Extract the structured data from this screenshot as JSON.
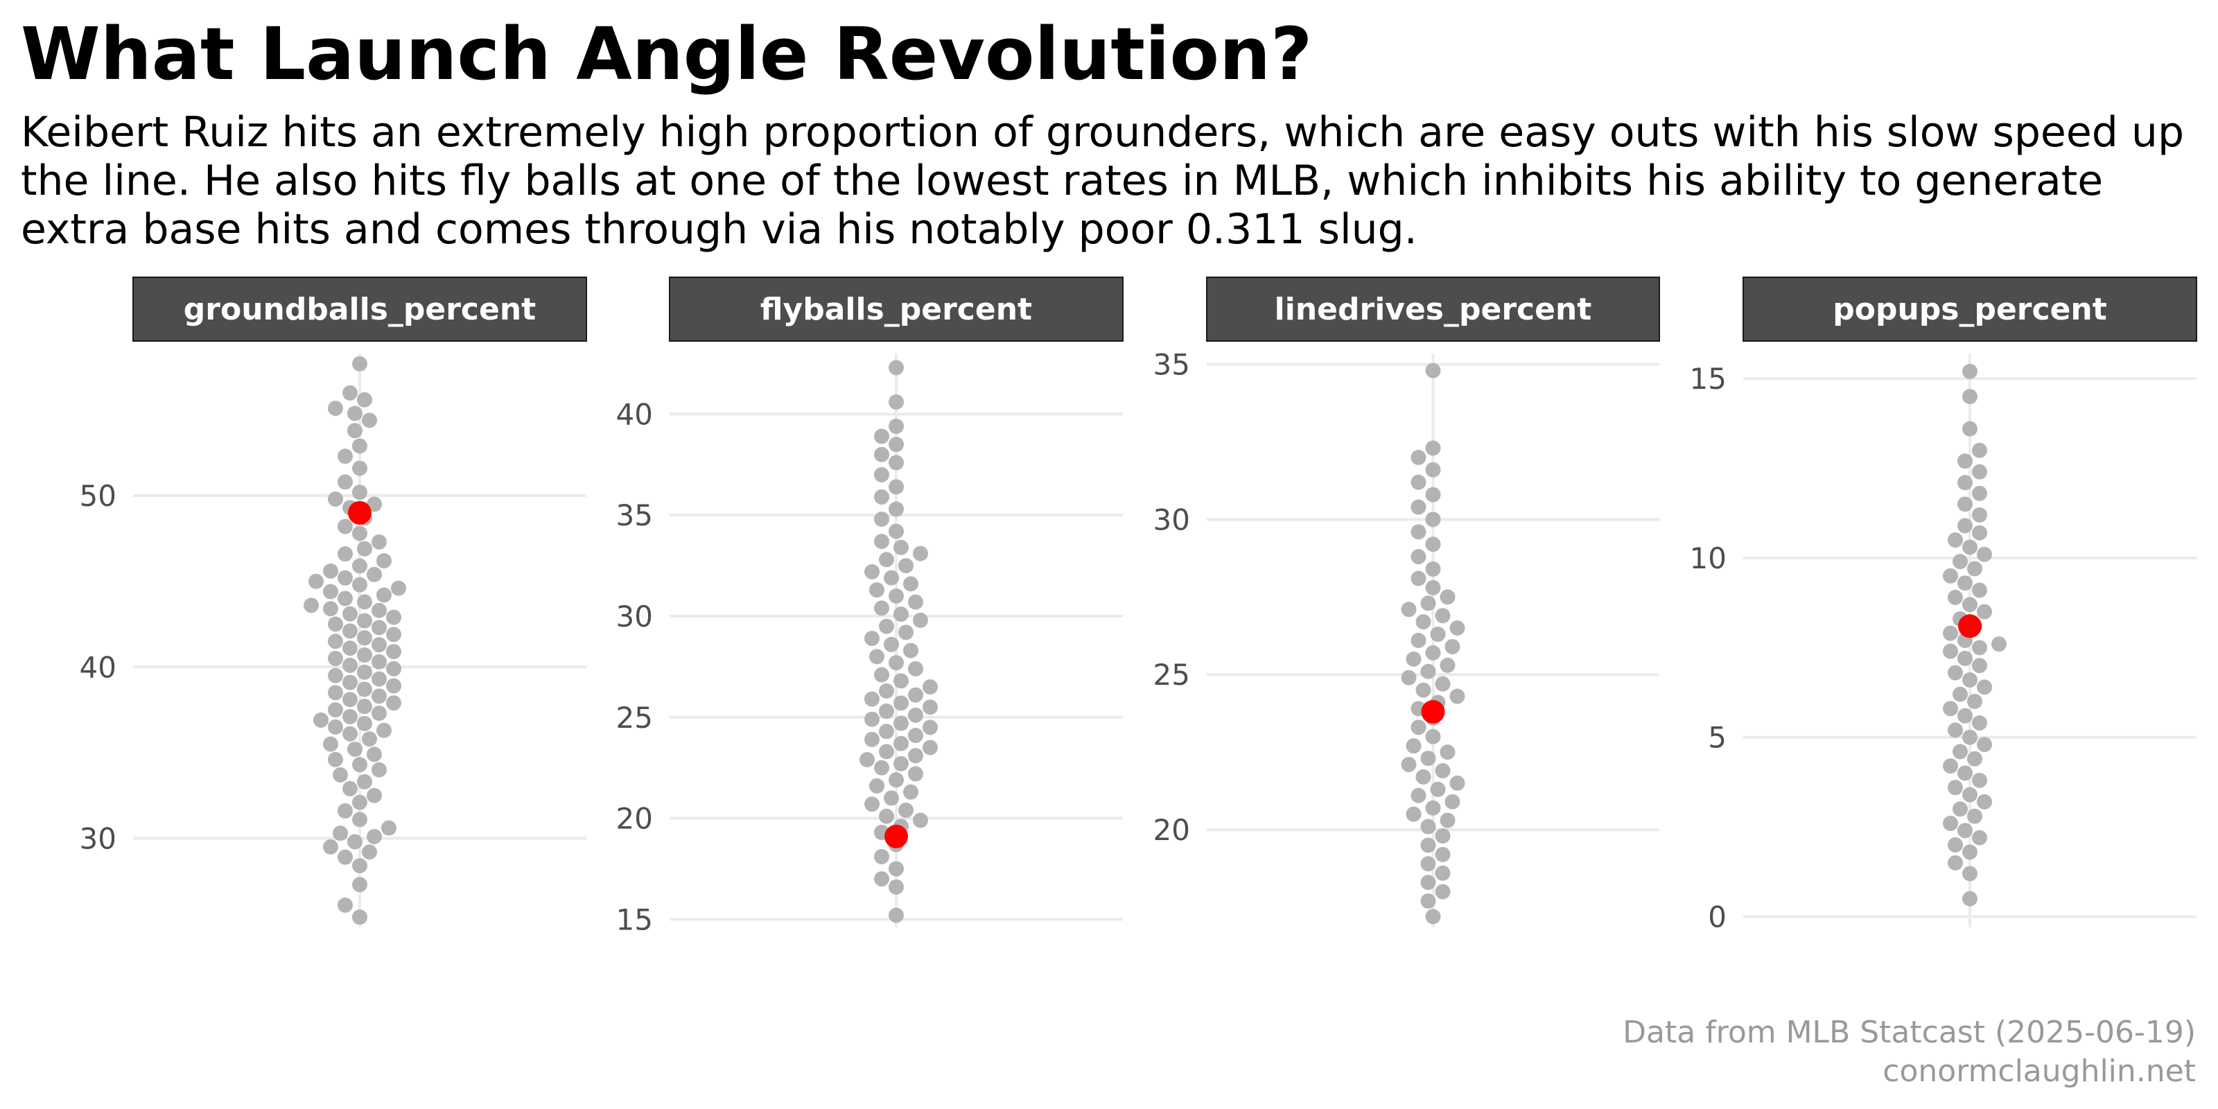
{
  "title": "What Launch Angle Revolution?",
  "subtitle": "Keibert Ruiz hits an extremely high proportion of grounders, which are easy outs with his slow speed up the line. He also hits fly balls at one of the lowest rates in MLB, which inhibits his ability to generate extra base hits and comes through via his notably poor 0.311 slug.",
  "caption": {
    "line1": "Data from MLB Statcast (2025-06-19)",
    "line2": "conormclaughlin.net"
  },
  "colors": {
    "league_points": "#b3b3b3",
    "highlight_point": "#ff0000",
    "strip_background": "#4d4d4d",
    "strip_text": "#ffffff",
    "grid": "#ebebeb",
    "tick_text": "#4d4d4d",
    "caption_text": "#999999"
  },
  "chart_data": {
    "type": "scatter",
    "style": "beeswarm, faceted with free y scales",
    "highlight_player": "Keibert Ruiz",
    "facets": [
      {
        "label": "groundballs_percent",
        "ylim": [
          24.8,
          58.3
        ],
        "ticks": [
          30,
          40,
          50
        ],
        "highlight": 49,
        "league_min": 25.4,
        "league_max": 57.7,
        "league_values": [
          57.7,
          56,
          55.6,
          55.1,
          54.8,
          54.4,
          53.8,
          52.9,
          52.3,
          51.6,
          50.8,
          50.2,
          49.8,
          49.5,
          49.3,
          48.7,
          48.2,
          47.8,
          47.3,
          46.9,
          46.6,
          46.2,
          45.9,
          45.6,
          45.4,
          45.2,
          45,
          44.8,
          44.6,
          44.4,
          44.2,
          44,
          43.8,
          43.6,
          43.4,
          43.3,
          43.1,
          42.9,
          42.7,
          42.5,
          42.3,
          42.1,
          41.9,
          41.7,
          41.5,
          41.3,
          41.1,
          40.9,
          40.7,
          40.5,
          40.3,
          40.1,
          39.9,
          39.7,
          39.5,
          39.3,
          39.1,
          38.9,
          38.7,
          38.5,
          38.3,
          38.1,
          37.9,
          37.7,
          37.5,
          37.3,
          37.1,
          36.9,
          36.7,
          36.5,
          36.3,
          36.1,
          35.8,
          35.5,
          35.2,
          34.9,
          34.6,
          34.3,
          34,
          33.7,
          33.3,
          32.9,
          32.5,
          32.1,
          31.6,
          31.1,
          30.6,
          30.3,
          30.1,
          29.8,
          29.5,
          29.2,
          28.9,
          28.4,
          27.3,
          26.1,
          25.4
        ]
      },
      {
        "label": "flyballs_percent",
        "ylim": [
          14.6,
          43.0
        ],
        "ticks": [
          15,
          20,
          25,
          30,
          35,
          40
        ],
        "highlight": 19.1,
        "league_min": 15.2,
        "league_max": 42.3,
        "league_values": [
          42.3,
          40.6,
          39.4,
          38.9,
          38.5,
          38,
          37.6,
          37,
          36.4,
          35.9,
          35.3,
          34.8,
          34.2,
          33.7,
          33.4,
          33.1,
          32.8,
          32.5,
          32.2,
          31.9,
          31.6,
          31.3,
          31,
          30.7,
          30.4,
          30.1,
          29.8,
          29.5,
          29.2,
          28.9,
          28.6,
          28.3,
          28,
          27.7,
          27.4,
          27.1,
          26.8,
          26.5,
          26.3,
          26.1,
          25.9,
          25.7,
          25.5,
          25.3,
          25.1,
          24.9,
          24.7,
          24.5,
          24.3,
          24.1,
          23.9,
          23.7,
          23.5,
          23.3,
          23.1,
          22.9,
          22.7,
          22.5,
          22.2,
          21.9,
          21.6,
          21.3,
          21,
          20.7,
          20.4,
          20.1,
          19.9,
          19.6,
          19.3,
          18.7,
          18.1,
          17.5,
          17,
          16.6,
          15.2
        ]
      },
      {
        "label": "linedrives_percent",
        "ylim": [
          16.85,
          35.35
        ],
        "ticks": [
          20,
          25,
          30,
          35
        ],
        "highlight": 23.8,
        "league_min": 17.2,
        "league_max": 34.8,
        "league_values": [
          34.8,
          32.3,
          32,
          31.6,
          31.2,
          30.8,
          30.4,
          30,
          29.6,
          29.2,
          28.8,
          28.4,
          28.1,
          27.8,
          27.5,
          27.3,
          27.1,
          26.9,
          26.7,
          26.5,
          26.3,
          26.1,
          25.9,
          25.7,
          25.5,
          25.3,
          25.1,
          24.9,
          24.7,
          24.5,
          24.3,
          24.1,
          23.9,
          23.6,
          23.3,
          23,
          22.7,
          22.5,
          22.3,
          22.1,
          21.9,
          21.7,
          21.5,
          21.3,
          21.1,
          20.9,
          20.7,
          20.5,
          20.3,
          20.1,
          19.8,
          19.5,
          19.2,
          18.9,
          18.6,
          18.3,
          18,
          17.7,
          17.2
        ]
      },
      {
        "label": "popups_percent",
        "ylim": [
          -0.3,
          15.7
        ],
        "ticks": [
          0,
          5,
          10,
          15
        ],
        "highlight": 8.1,
        "league_min": 0.5,
        "league_max": 15.2,
        "league_values": [
          15.2,
          14.5,
          13.6,
          13,
          12.7,
          12.4,
          12.1,
          11.8,
          11.5,
          11.2,
          10.9,
          10.7,
          10.5,
          10.3,
          10.1,
          9.9,
          9.7,
          9.5,
          9.3,
          9.1,
          8.9,
          8.7,
          8.5,
          8.3,
          8.1,
          7.9,
          7.7,
          7.6,
          7.5,
          7.4,
          7.2,
          7,
          6.8,
          6.6,
          6.4,
          6.2,
          6,
          5.8,
          5.6,
          5.4,
          5.2,
          5,
          4.8,
          4.6,
          4.4,
          4.2,
          4,
          3.8,
          3.6,
          3.4,
          3.2,
          3,
          2.8,
          2.6,
          2.4,
          2.2,
          2,
          1.8,
          1.5,
          1.2,
          0.5
        ]
      }
    ]
  }
}
